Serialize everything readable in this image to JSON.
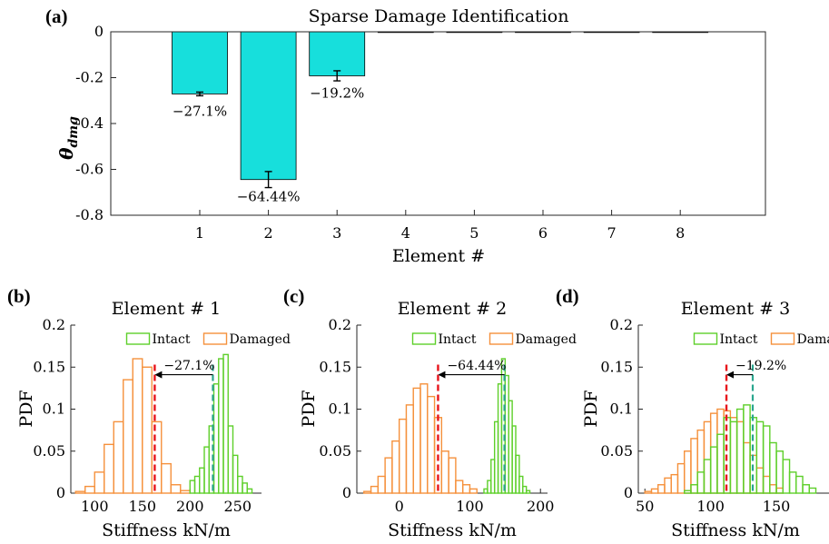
{
  "chart_data": [
    {
      "panel": "(a)",
      "type": "bar",
      "title": "Sparse Damage Identification",
      "xlabel": "Element #",
      "ylabel": "θ_dmg",
      "ylim": [
        -0.8,
        0
      ],
      "yticks": [
        "0",
        "-0.2",
        "-0.4",
        "-0.6",
        "-0.8"
      ],
      "categories": [
        "1",
        "2",
        "3",
        "4",
        "5",
        "6",
        "7",
        "8"
      ],
      "values": [
        -0.271,
        -0.6444,
        -0.192,
        0,
        0,
        0,
        0,
        0
      ],
      "error": [
        0.008,
        0.035,
        0.022,
        0,
        0,
        0,
        0,
        0
      ],
      "bar_labels": [
        "−27.1%",
        "−64.44%",
        "−19.2%",
        "",
        "",
        "",
        "",
        ""
      ],
      "bar_color": "#17dfdc"
    },
    {
      "panel": "(b)",
      "type": "histogram",
      "title": "Element # 1",
      "xlabel": "Stiffness kN/m",
      "ylabel": "PDF",
      "xlim": [
        75,
        275
      ],
      "ylim": [
        0,
        0.2
      ],
      "xticks": [
        100,
        150,
        200,
        250
      ],
      "yticks": [
        "0",
        "0.05",
        "0.1",
        "0.15",
        "0.2"
      ],
      "legend": [
        "Intact",
        "Damaged"
      ],
      "annotation": "−27.1%",
      "intact_mean": 224,
      "damaged_mean": 163,
      "intact": {
        "start": 200,
        "width": 5,
        "values": [
          0.015,
          0.02,
          0.03,
          0.055,
          0.08,
          0.13,
          0.16,
          0.165,
          0.08,
          0.045,
          0.02,
          0.012,
          0.005
        ]
      },
      "damaged": {
        "start": 80,
        "width": 10,
        "values": [
          0.002,
          0.008,
          0.025,
          0.058,
          0.085,
          0.135,
          0.16,
          0.15,
          0.085,
          0.035,
          0.01,
          0.003
        ]
      }
    },
    {
      "panel": "(c)",
      "type": "histogram",
      "title": "Element # 2",
      "xlabel": "Stiffness kN/m",
      "ylabel": "PDF",
      "xlim": [
        -60,
        210
      ],
      "ylim": [
        0,
        0.2
      ],
      "xticks": [
        0,
        100,
        200
      ],
      "yticks": [
        "0",
        "0.05",
        "0.1",
        "0.15",
        "0.2"
      ],
      "legend": [
        "Intact",
        "Damaged"
      ],
      "annotation": "−64.44%",
      "intact_mean": 149,
      "damaged_mean": 55,
      "intact": {
        "start": 120,
        "width": 5,
        "values": [
          0.005,
          0.015,
          0.04,
          0.085,
          0.13,
          0.16,
          0.14,
          0.11,
          0.08,
          0.045,
          0.02,
          0.008,
          0.003
        ]
      },
      "damaged": {
        "start": -50,
        "width": 10,
        "values": [
          0.002,
          0.008,
          0.02,
          0.042,
          0.062,
          0.088,
          0.105,
          0.125,
          0.13,
          0.115,
          0.09,
          0.05,
          0.042,
          0.015,
          0.01,
          0.005
        ]
      }
    },
    {
      "panel": "(d)",
      "type": "histogram",
      "title": "Element # 3",
      "xlabel": "Stiffness kN/m",
      "ylabel": "PDF",
      "xlim": [
        45,
        190
      ],
      "ylim": [
        0,
        0.2
      ],
      "xticks": [
        50,
        100,
        150
      ],
      "yticks": [
        "0",
        "0.05",
        "0.1",
        "0.15",
        "0.2"
      ],
      "legend": [
        "Intact",
        "Damaged"
      ],
      "annotation": "−19.2%",
      "intact_mean": 132,
      "damaged_mean": 112,
      "intact": {
        "start": 80,
        "width": 5,
        "values": [
          0.003,
          0.01,
          0.025,
          0.04,
          0.055,
          0.07,
          0.09,
          0.085,
          0.1,
          0.105,
          0.09,
          0.085,
          0.08,
          0.06,
          0.05,
          0.04,
          0.025,
          0.02,
          0.01,
          0.006
        ]
      },
      "damaged": {
        "start": 50,
        "width": 5,
        "values": [
          0.002,
          0.005,
          0.01,
          0.018,
          0.022,
          0.035,
          0.05,
          0.065,
          0.075,
          0.085,
          0.095,
          0.1,
          0.098,
          0.09,
          0.085,
          0.06,
          0.045,
          0.03,
          0.02,
          0.01,
          0.006
        ]
      }
    }
  ],
  "colors": {
    "intact": "#5ecf2a",
    "damaged": "#f5913c",
    "intact_mean": "#2aa68e",
    "damaged_mean": "#e8141b"
  }
}
